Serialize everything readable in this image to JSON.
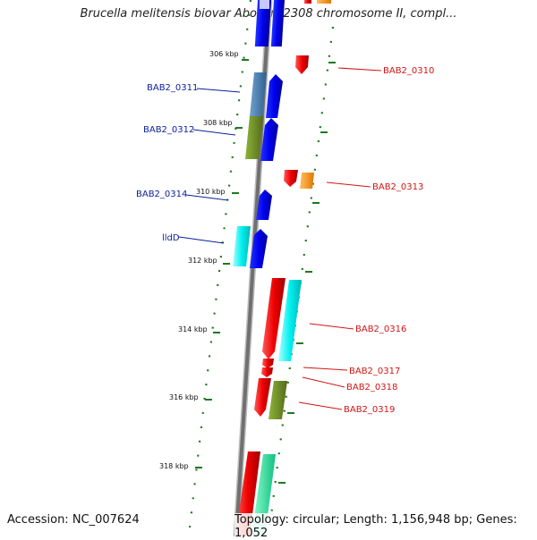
{
  "title": "Brucella melitensis biovar Abortus 2308 chromosome II, compl...",
  "footer": {
    "accession": "Accession: NC_007624",
    "summary": "Topology: circular; Length: 1,156,948 bp; Genes: 1,052"
  },
  "ticks": [
    "306 kbp",
    "308 kbp",
    "310 kbp",
    "312 kbp",
    "314 kbp",
    "316 kbp",
    "318 kbp"
  ],
  "genes_left": [
    "BAB2_0311",
    "BAB2_0312",
    "BAB2_0314",
    "lldD"
  ],
  "genes_right": [
    "BAB2_0310",
    "BAB2_0313",
    "BAB2_0316",
    "BAB2_0317",
    "BAB2_0318",
    "BAB2_0319"
  ],
  "colors": {
    "blue": "#0000ff",
    "steel": "#4a7fb5",
    "olive": "#6b8e23",
    "cyan": "#00ffff",
    "red": "#ff0000",
    "orange": "#ff9900",
    "seagreen": "#33ffaa",
    "label_blue": "#0a1f9c",
    "label_red": "#d21414"
  }
}
